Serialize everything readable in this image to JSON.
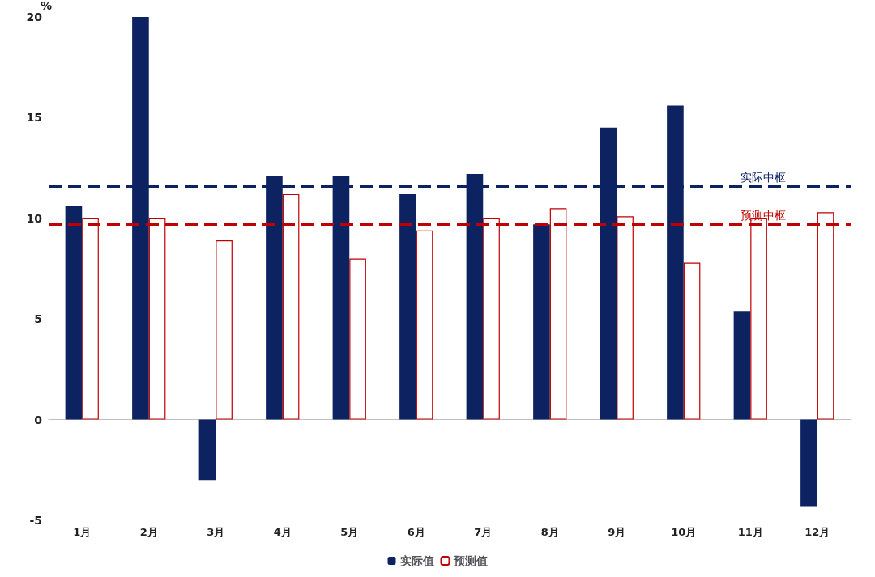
{
  "chart_data": {
    "type": "bar",
    "ylabel": "%",
    "categories": [
      "1月",
      "2月",
      "3月",
      "4月",
      "5月",
      "6月",
      "7月",
      "8月",
      "9月",
      "10月",
      "11月",
      "12月"
    ],
    "series": [
      {
        "name": "实际值",
        "color": "#0d2260",
        "values": [
          10.6,
          20,
          -3.0,
          12.1,
          12.1,
          11.2,
          12.2,
          9.7,
          14.5,
          15.6,
          5.4,
          -4.3
        ]
      },
      {
        "name": "预测值",
        "color": "#c00000",
        "values": [
          10.0,
          10.0,
          8.9,
          11.2,
          8.0,
          9.4,
          10.0,
          10.5,
          10.1,
          7.8,
          10.0,
          10.3
        ]
      }
    ],
    "ylim": [
      -5,
      20
    ],
    "yticks": [
      -5,
      0,
      5,
      10,
      15,
      20
    ],
    "legend": "bottom",
    "ref_lines": [
      {
        "axis": "y",
        "value": 11.6,
        "label": "实际中枢",
        "color": "#0d2260",
        "line_style": "dashed"
      },
      {
        "axis": "y",
        "value": 9.7,
        "label": "预测中枢",
        "color": "#c00000",
        "line_style": "dashed"
      }
    ]
  }
}
